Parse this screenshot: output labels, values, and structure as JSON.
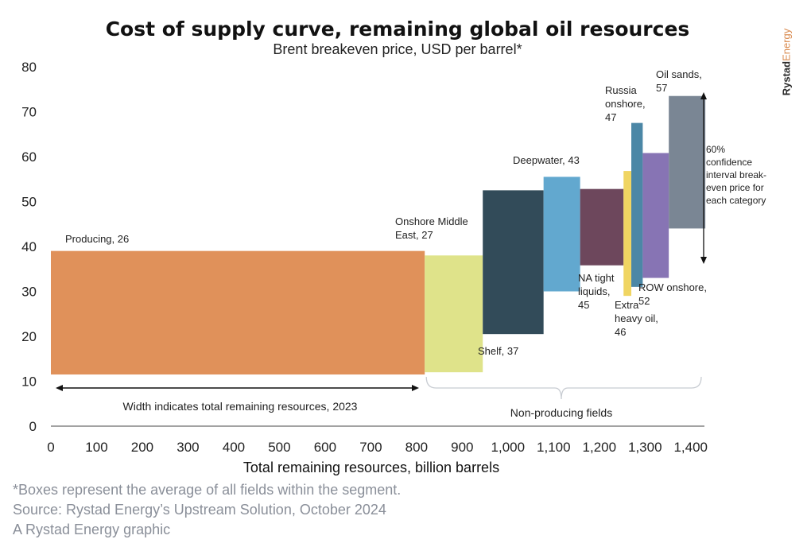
{
  "title": "Cost of supply curve, remaining global oil resources",
  "subtitle": "Brent breakeven price, USD per barrel*",
  "brand": {
    "name": "Rystad",
    "suffix": "Energy"
  },
  "footnotes": [
    "*Boxes represent the average of all fields within the segment.",
    "Source: Rystad Energy’s Upstream Solution, October 2024",
    "A Rystad Energy graphic"
  ],
  "chart_data": {
    "type": "bar",
    "variant": "cost-of-supply boxes (x-width = resources, y = breakeven range)",
    "xlabel": "Total remaining resources, billion barrels",
    "ylabel": "",
    "xlim": [
      0,
      1430
    ],
    "ylim": [
      0,
      80
    ],
    "xticks": [
      0,
      100,
      200,
      300,
      400,
      500,
      600,
      700,
      800,
      900,
      1000,
      1100,
      1200,
      1300,
      1400
    ],
    "xtick_labels": [
      "0",
      "100",
      "200",
      "300",
      "400",
      "500",
      "600",
      "700",
      "800",
      "900",
      "1,000",
      "1,100",
      "1,200",
      "1,300",
      "1,400"
    ],
    "yticks": [
      0,
      10,
      20,
      30,
      40,
      50,
      60,
      70,
      80
    ],
    "grid": false,
    "segments": [
      {
        "label": [
          "Producing, 26"
        ],
        "x0": 0,
        "x1": 818,
        "low": 11.5,
        "high": 39,
        "color": "#e0915a"
      },
      {
        "label": [
          "Onshore Middle",
          "East, 27"
        ],
        "x0": 818,
        "x1": 945,
        "low": 12,
        "high": 38,
        "color": "#dfe38a"
      },
      {
        "label": [
          "Shelf, 37"
        ],
        "x0": 945,
        "x1": 1078,
        "low": 20.5,
        "high": 52.5,
        "color": "#324b59"
      },
      {
        "label": [
          "Deepwater, 43"
        ],
        "x0": 1078,
        "x1": 1158,
        "low": 30,
        "high": 55.5,
        "color": "#62a8cf"
      },
      {
        "label": [
          "NA tight",
          "liquids,",
          "45"
        ],
        "x0": 1158,
        "x1": 1253,
        "low": 35.8,
        "high": 52.8,
        "color": "#6d475c"
      },
      {
        "label": [
          "Extra",
          "heavy oil,",
          "46"
        ],
        "x0": 1253,
        "x1": 1270,
        "low": 29,
        "high": 56.8,
        "color": "#f0d562"
      },
      {
        "label": [
          "Russia",
          "onshore,",
          "47"
        ],
        "x0": 1270,
        "x1": 1295,
        "low": 31,
        "high": 67.5,
        "color": "#4b87a6"
      },
      {
        "label": [
          "ROW onshore,",
          "52"
        ],
        "x0": 1295,
        "x1": 1352,
        "low": 33,
        "high": 60.8,
        "color": "#8774b4"
      },
      {
        "label": [
          "Oil sands,",
          "57"
        ],
        "x0": 1352,
        "x1": 1432,
        "low": 44,
        "high": 73.5,
        "color": "#7a8694"
      }
    ],
    "annotations": {
      "width_note": "Width indicates total remaining resources, 2023",
      "non_producing": "Non-producing fields",
      "confidence_note": [
        "60%",
        "confidence",
        "interval break-",
        "even price for",
        "each category"
      ]
    }
  }
}
